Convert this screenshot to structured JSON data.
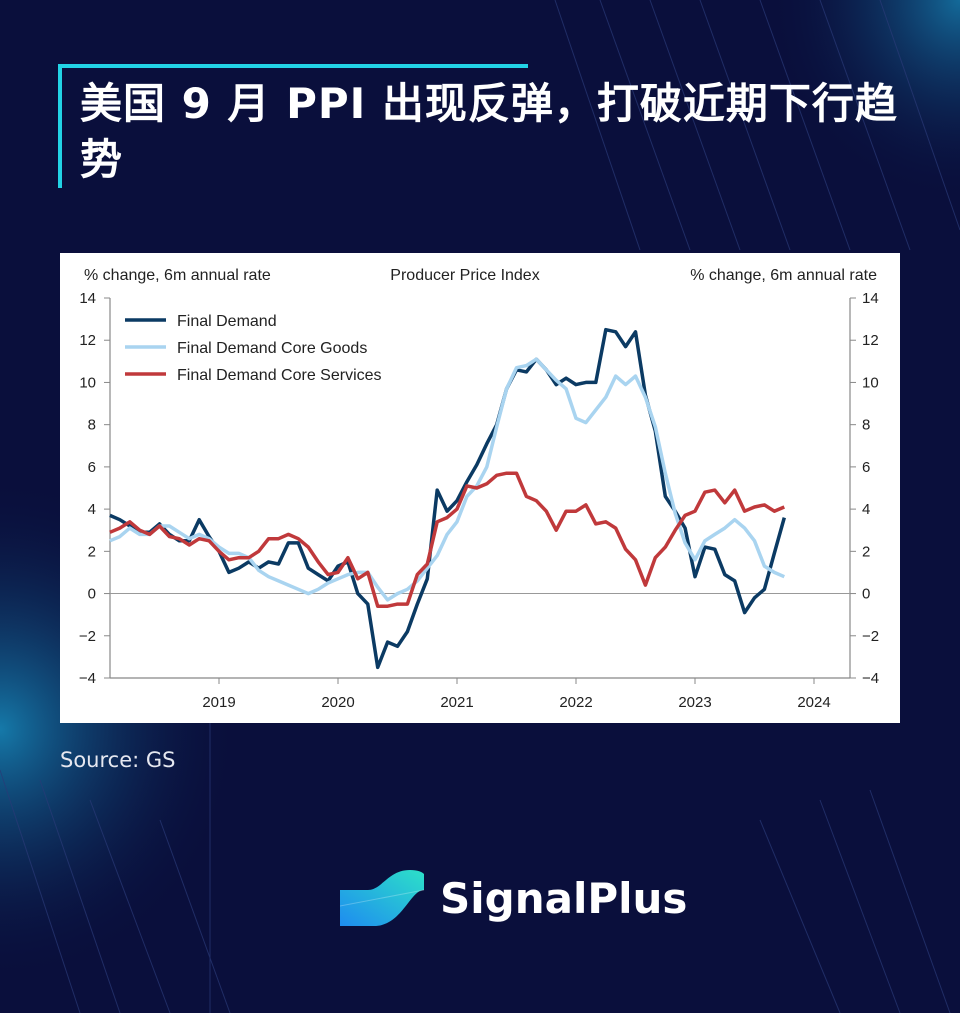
{
  "title": "美国 9 月 PPI 出现反弹，打破近期下行趋势",
  "source": "Source: GS",
  "brand": "SignalPlus",
  "colors": {
    "background": "#0a0f3c",
    "accent": "#22d3e6"
  },
  "chart_data": {
    "type": "line",
    "title": "Producer Price Index",
    "ylabel_left": "% change, 6m annual rate",
    "ylabel_right": "% change, 6m annual rate",
    "ylim": [
      -4,
      14
    ],
    "yticks": [
      -4,
      -2,
      0,
      2,
      4,
      6,
      8,
      10,
      12,
      14
    ],
    "xticks": [
      "2019",
      "2020",
      "2021",
      "2022",
      "2023",
      "2024"
    ],
    "x_start": "2018-02",
    "x_end": "2023-10",
    "legend": "top-left",
    "grid": false,
    "series": [
      {
        "name": "Final Demand",
        "color": "#0b3a63",
        "values": [
          3.7,
          3.5,
          3.2,
          2.9,
          2.9,
          3.3,
          2.8,
          2.5,
          2.5,
          3.5,
          2.7,
          2.0,
          1.0,
          1.2,
          1.5,
          1.2,
          1.5,
          1.4,
          2.4,
          2.4,
          1.2,
          0.9,
          0.6,
          1.3,
          1.5,
          0.0,
          -0.5,
          -3.5,
          -2.3,
          -2.5,
          -1.8,
          -0.5,
          0.7,
          4.9,
          3.9,
          4.4,
          5.3,
          6.1,
          7.1,
          8.0,
          9.7,
          10.6,
          10.5,
          11.1,
          10.6,
          9.9,
          10.2,
          9.9,
          10.0,
          10.0,
          12.5,
          12.4,
          11.7,
          12.4,
          9.4,
          7.7,
          4.6,
          3.9,
          3.1,
          0.8,
          2.2,
          2.1,
          0.9,
          0.6,
          -0.9,
          -0.2,
          0.2,
          1.9,
          3.6
        ]
      },
      {
        "name": "Final Demand Core Goods",
        "color": "#a9d4f0",
        "values": [
          2.5,
          2.7,
          3.1,
          2.8,
          2.8,
          3.2,
          3.2,
          2.9,
          2.6,
          2.8,
          2.6,
          2.2,
          1.9,
          1.9,
          1.7,
          1.1,
          0.8,
          0.6,
          0.4,
          0.2,
          0.0,
          0.2,
          0.5,
          0.7,
          0.9,
          1.0,
          1.0,
          0.3,
          -0.3,
          0.0,
          0.2,
          0.6,
          1.2,
          1.8,
          2.8,
          3.4,
          4.6,
          5.1,
          6.0,
          7.9,
          9.7,
          10.7,
          10.8,
          11.1,
          10.6,
          10.1,
          9.7,
          8.3,
          8.1,
          8.7,
          9.3,
          10.3,
          9.9,
          10.3,
          9.3,
          7.9,
          5.7,
          3.8,
          2.4,
          1.6,
          2.5,
          2.8,
          3.1,
          3.5,
          3.1,
          2.5,
          1.3,
          1.0,
          0.8
        ]
      },
      {
        "name": "Final Demand Core Services",
        "color": "#c0393b",
        "values": [
          2.9,
          3.1,
          3.4,
          3.0,
          2.8,
          3.2,
          2.7,
          2.6,
          2.3,
          2.6,
          2.5,
          2.0,
          1.6,
          1.7,
          1.7,
          2.0,
          2.6,
          2.6,
          2.8,
          2.6,
          2.2,
          1.5,
          0.9,
          1.0,
          1.7,
          0.7,
          1.0,
          -0.6,
          -0.6,
          -0.5,
          -0.5,
          0.9,
          1.4,
          3.4,
          3.6,
          4.0,
          5.1,
          5.0,
          5.2,
          5.6,
          5.7,
          5.7,
          4.6,
          4.4,
          3.9,
          3.0,
          3.9,
          3.9,
          4.2,
          3.3,
          3.4,
          3.1,
          2.1,
          1.6,
          0.4,
          1.7,
          2.2,
          3.0,
          3.7,
          3.9,
          4.8,
          4.9,
          4.3,
          4.9,
          3.9,
          4.1,
          4.2,
          3.9,
          4.1
        ]
      }
    ]
  }
}
